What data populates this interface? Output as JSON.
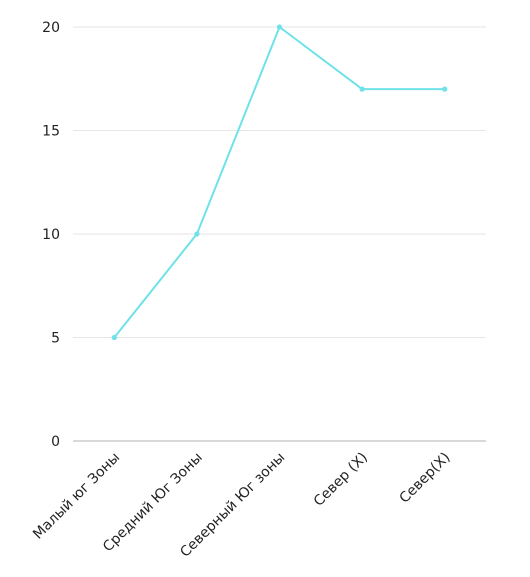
{
  "chart_data": {
    "type": "line",
    "categories": [
      "Малый юг Зоны",
      "Средний Юг Зоны",
      "Северный Юг зоны",
      "Север (X)",
      "Север(X)"
    ],
    "values": [
      5,
      10,
      20,
      17,
      17
    ],
    "title": "",
    "xlabel": "",
    "ylabel": "",
    "ylim": [
      0,
      20
    ],
    "yticks": [
      0,
      5,
      10,
      15,
      20
    ],
    "grid": true,
    "legend": "none",
    "colors": {
      "line": "#6ee2e8",
      "grid": "#e6e6e6",
      "axis": "#b3b3b3"
    }
  }
}
